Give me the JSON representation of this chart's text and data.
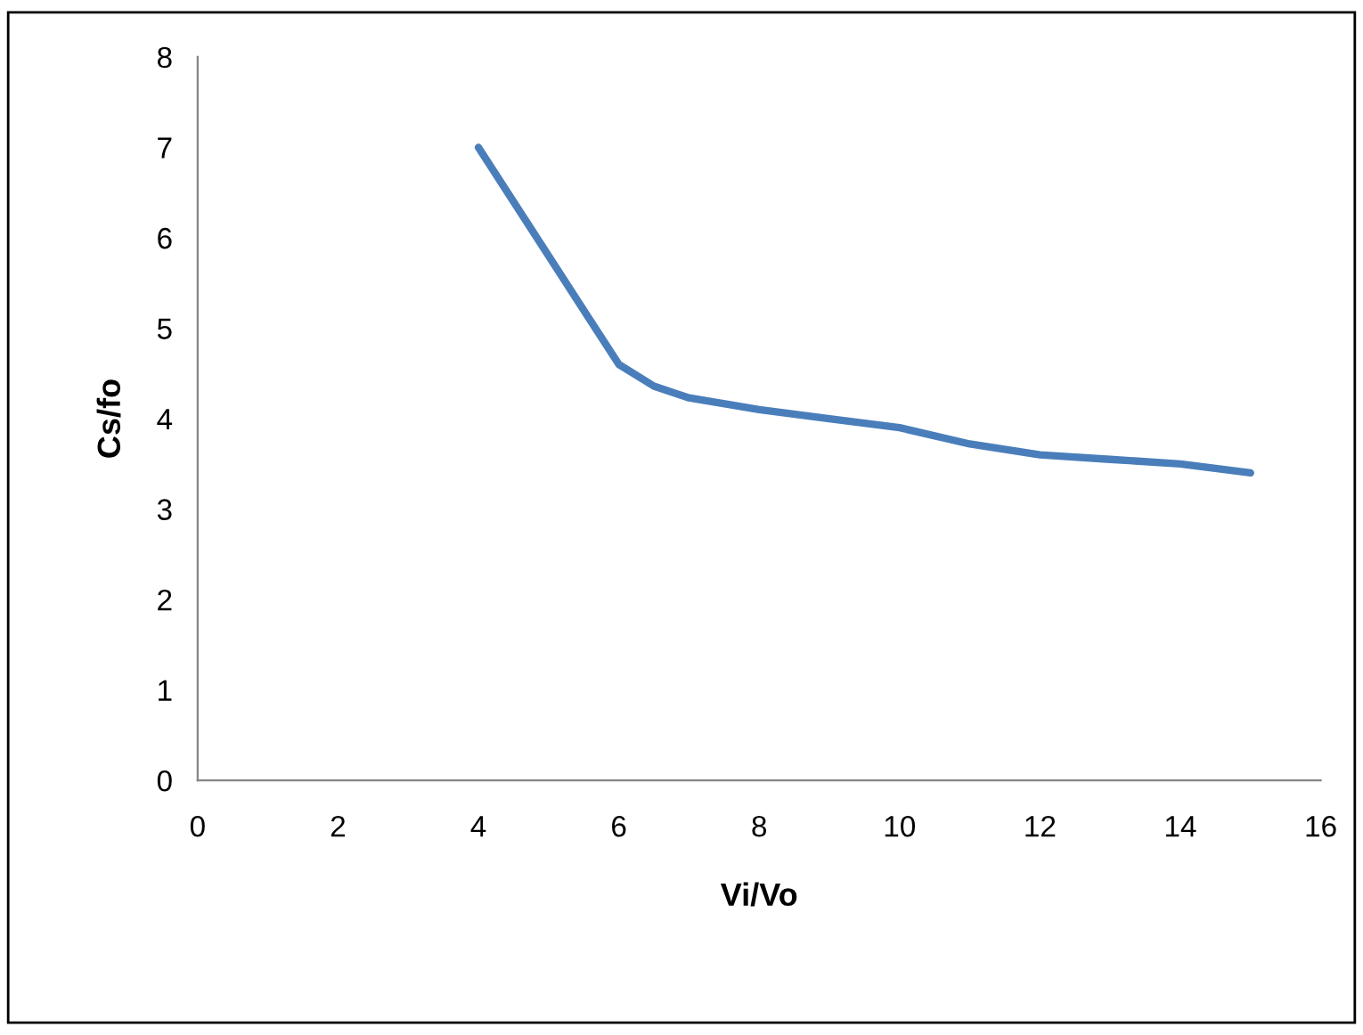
{
  "chart_data": {
    "type": "line",
    "xlabel": "Vi/Vo",
    "ylabel": "Cs/fo",
    "x": [
      4,
      5,
      5.5,
      6,
      6.5,
      7,
      8,
      9,
      10,
      11,
      12,
      13,
      14,
      15
    ],
    "series": [
      {
        "color": "#4a7ebb",
        "values": [
          7.0,
          5.8,
          5.2,
          4.6,
          4.36,
          4.23,
          4.1,
          4.0,
          3.9,
          3.72,
          3.6,
          3.55,
          3.5,
          3.4
        ]
      }
    ],
    "xlim": [
      0,
      16
    ],
    "xticks": [
      0,
      2,
      4,
      6,
      8,
      10,
      12,
      14,
      16
    ],
    "ylim": [
      0,
      8
    ],
    "yticks": [
      0,
      1,
      2,
      3,
      4,
      5,
      6,
      7,
      8
    ],
    "marker": "none",
    "line_style": "solid"
  }
}
